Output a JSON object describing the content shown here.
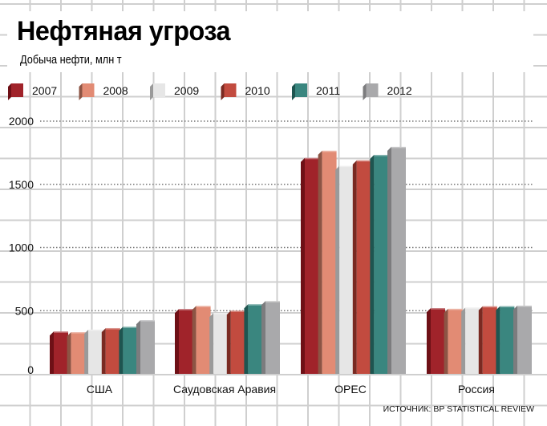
{
  "chart_data": {
    "type": "bar",
    "title": "Нефтяная угроза",
    "subtitle": "Добыча нефти, млн т",
    "categories": [
      "США",
      "Саудовская Аравия",
      "OPEC",
      "Россия"
    ],
    "series": [
      {
        "name": "2007",
        "color": "#a0232a",
        "side": "#6e1016",
        "values": [
          335,
          513,
          1709,
          520
        ]
      },
      {
        "name": "2008",
        "color": "#e28b74",
        "side": "#8c5444",
        "values": [
          330,
          538,
          1766,
          515
        ]
      },
      {
        "name": "2009",
        "color": "#e6e6e6",
        "side": "#9a9a9a",
        "values": [
          350,
          482,
          1646,
          525
        ]
      },
      {
        "name": "2010",
        "color": "#c24b3f",
        "side": "#7a2a22",
        "values": [
          362,
          500,
          1690,
          535
        ]
      },
      {
        "name": "2011",
        "color": "#3a867f",
        "side": "#1e5550",
        "values": [
          373,
          551,
          1733,
          536
        ]
      },
      {
        "name": "2012",
        "color": "#a9a9ab",
        "side": "#7c7c7e",
        "values": [
          425,
          576,
          1797,
          540
        ]
      }
    ],
    "yticks": [
      0,
      500,
      1000,
      1500,
      2000
    ],
    "ylim": [
      0,
      2000
    ],
    "grid": true,
    "legend": "top",
    "source": "ИСТОЧНИК: BP STATISTICAL REVIEW"
  }
}
